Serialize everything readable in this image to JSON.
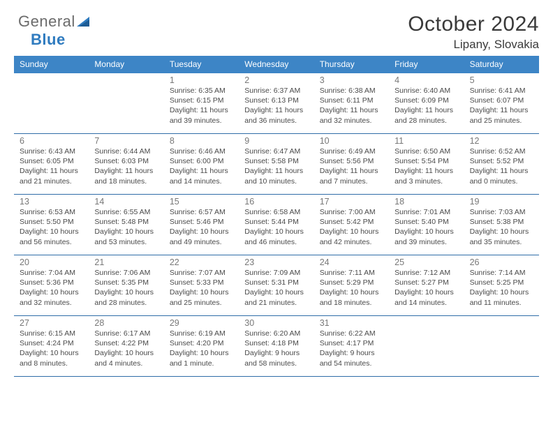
{
  "logo": {
    "line1_gray": "General",
    "line2_blue": "Blue"
  },
  "title": "October 2024",
  "location": "Lipany, Slovakia",
  "colors": {
    "header_bg": "#3d85c6",
    "header_text": "#ffffff",
    "rule": "#2f6da8",
    "daynum": "#787878",
    "body_text": "#4a4a4a",
    "title_text": "#3a3a3a",
    "logo_gray": "#6b6b6b",
    "logo_blue": "#2f7bbf",
    "page_bg": "#ffffff"
  },
  "typography": {
    "month_title_pt": 30,
    "location_pt": 17,
    "dayhead_pt": 12,
    "daynum_pt": 12.5,
    "info_pt": 10.5,
    "logo_pt": 22
  },
  "daynames": [
    "Sunday",
    "Monday",
    "Tuesday",
    "Wednesday",
    "Thursday",
    "Friday",
    "Saturday"
  ],
  "weeks": [
    [
      {
        "n": "",
        "sr": "",
        "ss": "",
        "dl": ""
      },
      {
        "n": "",
        "sr": "",
        "ss": "",
        "dl": ""
      },
      {
        "n": "1",
        "sr": "Sunrise: 6:35 AM",
        "ss": "Sunset: 6:15 PM",
        "dl": "Daylight: 11 hours and 39 minutes."
      },
      {
        "n": "2",
        "sr": "Sunrise: 6:37 AM",
        "ss": "Sunset: 6:13 PM",
        "dl": "Daylight: 11 hours and 36 minutes."
      },
      {
        "n": "3",
        "sr": "Sunrise: 6:38 AM",
        "ss": "Sunset: 6:11 PM",
        "dl": "Daylight: 11 hours and 32 minutes."
      },
      {
        "n": "4",
        "sr": "Sunrise: 6:40 AM",
        "ss": "Sunset: 6:09 PM",
        "dl": "Daylight: 11 hours and 28 minutes."
      },
      {
        "n": "5",
        "sr": "Sunrise: 6:41 AM",
        "ss": "Sunset: 6:07 PM",
        "dl": "Daylight: 11 hours and 25 minutes."
      }
    ],
    [
      {
        "n": "6",
        "sr": "Sunrise: 6:43 AM",
        "ss": "Sunset: 6:05 PM",
        "dl": "Daylight: 11 hours and 21 minutes."
      },
      {
        "n": "7",
        "sr": "Sunrise: 6:44 AM",
        "ss": "Sunset: 6:03 PM",
        "dl": "Daylight: 11 hours and 18 minutes."
      },
      {
        "n": "8",
        "sr": "Sunrise: 6:46 AM",
        "ss": "Sunset: 6:00 PM",
        "dl": "Daylight: 11 hours and 14 minutes."
      },
      {
        "n": "9",
        "sr": "Sunrise: 6:47 AM",
        "ss": "Sunset: 5:58 PM",
        "dl": "Daylight: 11 hours and 10 minutes."
      },
      {
        "n": "10",
        "sr": "Sunrise: 6:49 AM",
        "ss": "Sunset: 5:56 PM",
        "dl": "Daylight: 11 hours and 7 minutes."
      },
      {
        "n": "11",
        "sr": "Sunrise: 6:50 AM",
        "ss": "Sunset: 5:54 PM",
        "dl": "Daylight: 11 hours and 3 minutes."
      },
      {
        "n": "12",
        "sr": "Sunrise: 6:52 AM",
        "ss": "Sunset: 5:52 PM",
        "dl": "Daylight: 11 hours and 0 minutes."
      }
    ],
    [
      {
        "n": "13",
        "sr": "Sunrise: 6:53 AM",
        "ss": "Sunset: 5:50 PM",
        "dl": "Daylight: 10 hours and 56 minutes."
      },
      {
        "n": "14",
        "sr": "Sunrise: 6:55 AM",
        "ss": "Sunset: 5:48 PM",
        "dl": "Daylight: 10 hours and 53 minutes."
      },
      {
        "n": "15",
        "sr": "Sunrise: 6:57 AM",
        "ss": "Sunset: 5:46 PM",
        "dl": "Daylight: 10 hours and 49 minutes."
      },
      {
        "n": "16",
        "sr": "Sunrise: 6:58 AM",
        "ss": "Sunset: 5:44 PM",
        "dl": "Daylight: 10 hours and 46 minutes."
      },
      {
        "n": "17",
        "sr": "Sunrise: 7:00 AM",
        "ss": "Sunset: 5:42 PM",
        "dl": "Daylight: 10 hours and 42 minutes."
      },
      {
        "n": "18",
        "sr": "Sunrise: 7:01 AM",
        "ss": "Sunset: 5:40 PM",
        "dl": "Daylight: 10 hours and 39 minutes."
      },
      {
        "n": "19",
        "sr": "Sunrise: 7:03 AM",
        "ss": "Sunset: 5:38 PM",
        "dl": "Daylight: 10 hours and 35 minutes."
      }
    ],
    [
      {
        "n": "20",
        "sr": "Sunrise: 7:04 AM",
        "ss": "Sunset: 5:36 PM",
        "dl": "Daylight: 10 hours and 32 minutes."
      },
      {
        "n": "21",
        "sr": "Sunrise: 7:06 AM",
        "ss": "Sunset: 5:35 PM",
        "dl": "Daylight: 10 hours and 28 minutes."
      },
      {
        "n": "22",
        "sr": "Sunrise: 7:07 AM",
        "ss": "Sunset: 5:33 PM",
        "dl": "Daylight: 10 hours and 25 minutes."
      },
      {
        "n": "23",
        "sr": "Sunrise: 7:09 AM",
        "ss": "Sunset: 5:31 PM",
        "dl": "Daylight: 10 hours and 21 minutes."
      },
      {
        "n": "24",
        "sr": "Sunrise: 7:11 AM",
        "ss": "Sunset: 5:29 PM",
        "dl": "Daylight: 10 hours and 18 minutes."
      },
      {
        "n": "25",
        "sr": "Sunrise: 7:12 AM",
        "ss": "Sunset: 5:27 PM",
        "dl": "Daylight: 10 hours and 14 minutes."
      },
      {
        "n": "26",
        "sr": "Sunrise: 7:14 AM",
        "ss": "Sunset: 5:25 PM",
        "dl": "Daylight: 10 hours and 11 minutes."
      }
    ],
    [
      {
        "n": "27",
        "sr": "Sunrise: 6:15 AM",
        "ss": "Sunset: 4:24 PM",
        "dl": "Daylight: 10 hours and 8 minutes."
      },
      {
        "n": "28",
        "sr": "Sunrise: 6:17 AM",
        "ss": "Sunset: 4:22 PM",
        "dl": "Daylight: 10 hours and 4 minutes."
      },
      {
        "n": "29",
        "sr": "Sunrise: 6:19 AM",
        "ss": "Sunset: 4:20 PM",
        "dl": "Daylight: 10 hours and 1 minute."
      },
      {
        "n": "30",
        "sr": "Sunrise: 6:20 AM",
        "ss": "Sunset: 4:18 PM",
        "dl": "Daylight: 9 hours and 58 minutes."
      },
      {
        "n": "31",
        "sr": "Sunrise: 6:22 AM",
        "ss": "Sunset: 4:17 PM",
        "dl": "Daylight: 9 hours and 54 minutes."
      },
      {
        "n": "",
        "sr": "",
        "ss": "",
        "dl": ""
      },
      {
        "n": "",
        "sr": "",
        "ss": "",
        "dl": ""
      }
    ]
  ]
}
